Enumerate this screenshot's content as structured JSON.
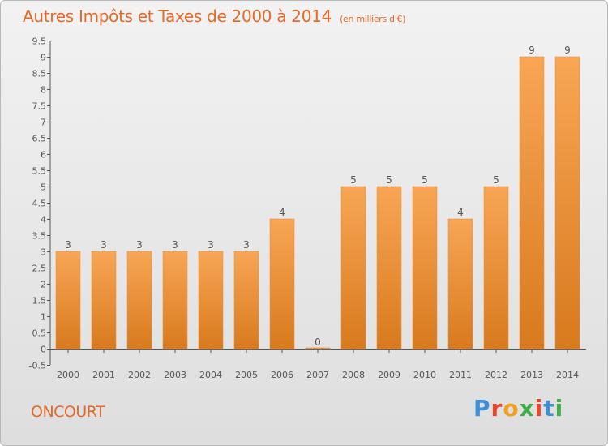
{
  "header": {
    "title": "Autres Impôts et Taxes de 2000 à 2014",
    "subtitle": "(en milliers d'€)"
  },
  "footer": {
    "commune": "ONCOURT",
    "logo_text": "Proxiti",
    "logo_colors": [
      "#3d8fd6",
      "#e6462b",
      "#f0a020",
      "#3fae49",
      "#e6462b",
      "#3d8fd6",
      "#3fae49"
    ]
  },
  "chart_data": {
    "type": "bar",
    "categories": [
      "2000",
      "2001",
      "2002",
      "2003",
      "2004",
      "2005",
      "2006",
      "2007",
      "2008",
      "2009",
      "2010",
      "2011",
      "2012",
      "2013",
      "2014"
    ],
    "values": [
      3,
      3,
      3,
      3,
      3,
      3,
      4,
      0,
      5,
      5,
      5,
      4,
      5,
      9,
      9
    ],
    "data_labels": [
      "3",
      "3",
      "3",
      "3",
      "3",
      "3",
      "4",
      "0",
      "5",
      "5",
      "5",
      "4",
      "5",
      "9",
      "9"
    ],
    "yticks": [
      "-0.5",
      "0",
      "0.5",
      "1",
      "1.5",
      "2",
      "2.5",
      "3",
      "3.5",
      "4",
      "4.5",
      "5",
      "5.5",
      "6",
      "6.5",
      "7",
      "7.5",
      "8",
      "8.5",
      "9",
      "9.5"
    ],
    "ylim": [
      -0.5,
      9.5
    ],
    "grid": false,
    "colors": {
      "bar_top": "#f8a655",
      "bar_bottom": "#d87a1e",
      "axis": "#555555",
      "label": "#555555"
    }
  }
}
